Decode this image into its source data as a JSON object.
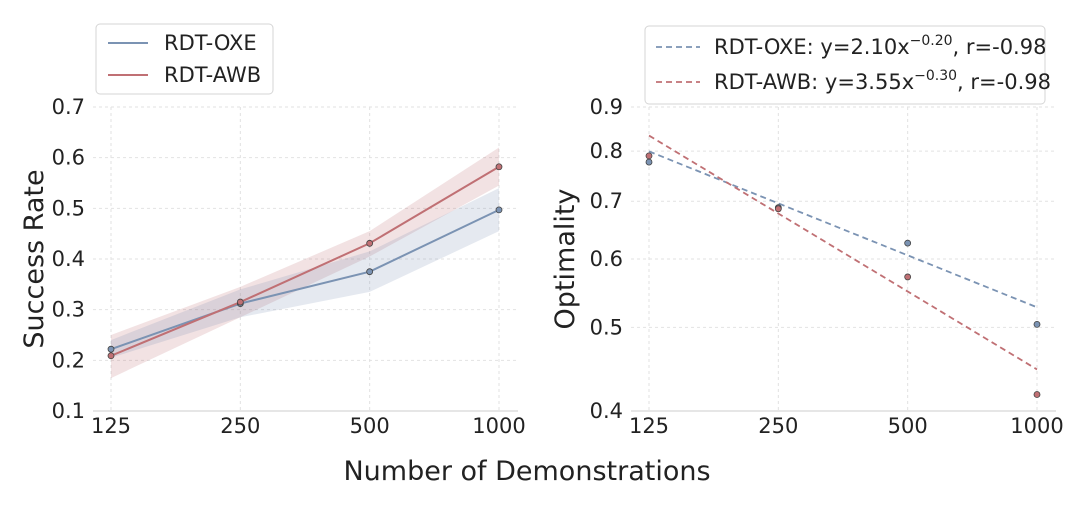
{
  "figure": {
    "shared_xlabel": "Number of Demonstrations"
  },
  "chart_data": [
    {
      "type": "line",
      "title": "",
      "xlabel": "Number of Demonstrations",
      "ylabel": "Success Rate",
      "xscale": "log2",
      "x": [
        125,
        250,
        500,
        1000
      ],
      "xtick_labels": [
        "125",
        "250",
        "500",
        "1000"
      ],
      "ylim": [
        0.1,
        0.7
      ],
      "yticks": [
        0.1,
        0.2,
        0.3,
        0.4,
        0.5,
        0.6,
        0.7
      ],
      "ytick_labels": [
        "0.1",
        "0.2",
        "0.3",
        "0.4",
        "0.5",
        "0.6",
        "0.7"
      ],
      "grid": true,
      "legend_position": "upper-left-outside",
      "series": [
        {
          "name": "RDT-OXE",
          "color": "#7b93b3",
          "values": [
            0.222,
            0.312,
            0.375,
            0.497
          ],
          "band_lower": [
            0.205,
            0.285,
            0.335,
            0.455
          ],
          "band_upper": [
            0.24,
            0.34,
            0.415,
            0.54
          ]
        },
        {
          "name": "RDT-AWB",
          "color": "#c07074",
          "values": [
            0.209,
            0.315,
            0.431,
            0.582
          ],
          "band_lower": [
            0.165,
            0.285,
            0.405,
            0.545
          ],
          "band_upper": [
            0.25,
            0.345,
            0.455,
            0.62
          ]
        }
      ]
    },
    {
      "type": "scatter",
      "title": "",
      "xlabel": "Number of Demonstrations",
      "ylabel": "Optimality",
      "xscale": "log2",
      "yscale": "log",
      "x": [
        125,
        250,
        500,
        1000
      ],
      "xtick_labels": [
        "125",
        "250",
        "500",
        "1000"
      ],
      "ylim": [
        0.4,
        0.9
      ],
      "yticks": [
        0.4,
        0.5,
        0.6,
        0.7,
        0.8,
        0.9
      ],
      "ytick_labels": [
        "0.4",
        "0.5",
        "0.6",
        "0.7",
        "0.8",
        "0.9"
      ],
      "grid": true,
      "legend_position": "upper-right-outside",
      "series": [
        {
          "name": "RDT-OXE",
          "color": "#7b93b3",
          "values": [
            0.777,
            0.688,
            0.626,
            0.504
          ],
          "fit": {
            "a": 2.1,
            "b": -0.2,
            "r": -0.98
          },
          "legend_prefix": "RDT-OXE: y=2.10x",
          "legend_exponent": "−0.20",
          "legend_suffix": ", r=-0.98"
        },
        {
          "name": "RDT-AWB",
          "color": "#c07074",
          "values": [
            0.79,
            0.686,
            0.572,
            0.418
          ],
          "fit": {
            "a": 3.55,
            "b": -0.3,
            "r": -0.98
          },
          "legend_prefix": "RDT-AWB: y=3.55x",
          "legend_exponent": "−0.30",
          "legend_suffix": ", r=-0.98"
        }
      ]
    }
  ]
}
